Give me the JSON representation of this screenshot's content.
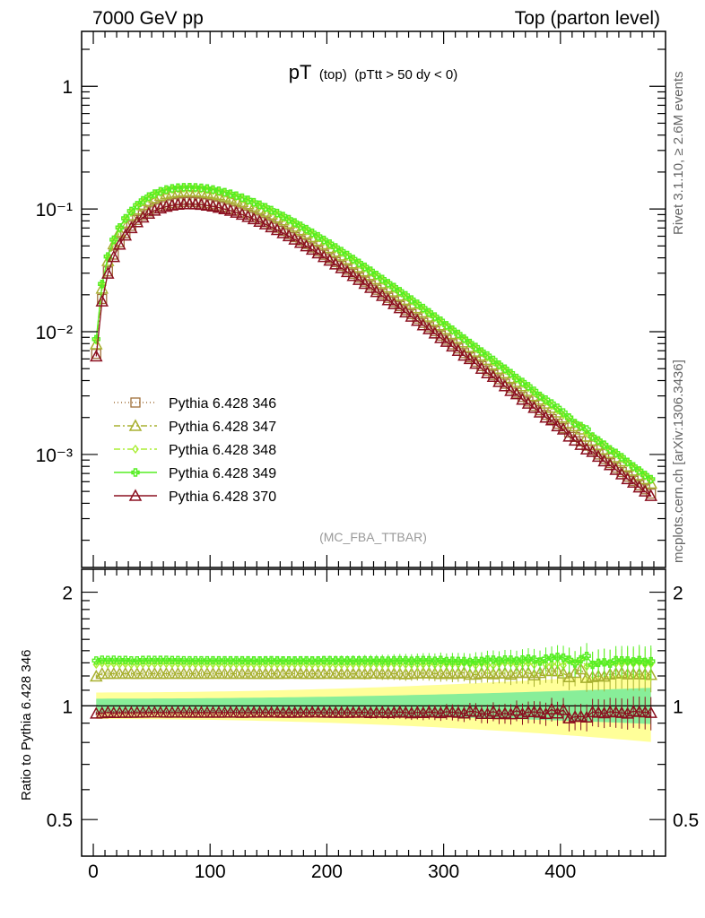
{
  "header": {
    "left": "7000 GeV pp",
    "right": "Top (parton level)"
  },
  "side_labels": {
    "rivet": "Rivet 3.1.10, ≥ 2.6M events",
    "mcplots": "mcplots.cern.ch [arXiv:1306.3436]"
  },
  "chart_data": {
    "type": "line",
    "title_main": "pT",
    "title_sub1": "(top)",
    "title_sub2": "(pTtt > 50 dy < 0)",
    "analysis_tag": "(MC_FBA_TTBAR)",
    "yscale": "log",
    "xlim": [
      -10,
      490
    ],
    "ylim": [
      0.00012,
      2.8
    ],
    "x_ticks": [
      "0",
      "100",
      "200",
      "300",
      "400"
    ],
    "y_ticks": [
      "1",
      "10⁻¹",
      "10⁻²",
      "10⁻³"
    ],
    "legend_position": "bottom-left",
    "ratio": {
      "ylabel": "Ratio to Pythia 6.428 346",
      "ylim": [
        0.4,
        2.3
      ],
      "y_ticks": [
        "2",
        "1",
        "0.5"
      ]
    },
    "x": [
      2.5,
      7.5,
      12.5,
      17.5,
      22.5,
      27.5,
      32.5,
      37.5,
      42.5,
      47.5,
      52.5,
      57.5,
      62.5,
      67.5,
      72.5,
      77.5,
      82.5,
      87.5,
      92.5,
      97.5,
      102.5,
      107.5,
      112.5,
      117.5,
      122.5,
      127.5,
      132.5,
      137.5,
      142.5,
      147.5,
      152.5,
      157.5,
      162.5,
      167.5,
      172.5,
      177.5,
      182.5,
      187.5,
      192.5,
      197.5,
      202.5,
      207.5,
      212.5,
      217.5,
      222.5,
      227.5,
      232.5,
      237.5,
      242.5,
      247.5,
      252.5,
      257.5,
      262.5,
      267.5,
      272.5,
      277.5,
      282.5,
      287.5,
      292.5,
      297.5,
      302.5,
      307.5,
      312.5,
      317.5,
      322.5,
      327.5,
      332.5,
      337.5,
      342.5,
      347.5,
      352.5,
      357.5,
      362.5,
      367.5,
      372.5,
      377.5,
      382.5,
      387.5,
      392.5,
      397.5,
      402.5,
      407.5,
      412.5,
      417.5,
      422.5,
      427.5,
      432.5,
      437.5,
      442.5,
      447.5,
      452.5,
      457.5,
      462.5,
      467.5,
      472.5,
      477.5
    ],
    "series": [
      {
        "name": "Pythia 6.428 346",
        "color": "#a0703a",
        "marker": "square",
        "dash": "1,3",
        "values": [
          0.0066,
          0.0185,
          0.031,
          0.0425,
          0.0535,
          0.0635,
          0.073,
          0.0815,
          0.089,
          0.0955,
          0.101,
          0.1055,
          0.109,
          0.1115,
          0.113,
          0.114,
          0.1142,
          0.1138,
          0.1128,
          0.1113,
          0.1093,
          0.1068,
          0.104,
          0.1008,
          0.0974,
          0.0938,
          0.09,
          0.0861,
          0.0822,
          0.0782,
          0.0742,
          0.0703,
          0.0664,
          0.0626,
          0.0589,
          0.0553,
          0.0519,
          0.0486,
          0.0454,
          0.0424,
          0.0396,
          0.0369,
          0.0344,
          0.032,
          0.0297,
          0.0276,
          0.0256,
          0.0238,
          0.022,
          0.0204,
          0.0189,
          0.0175,
          0.0162,
          0.015,
          0.0139,
          0.0128,
          0.0118,
          0.0109,
          0.0101,
          0.0093,
          0.0086,
          0.0079,
          0.0073,
          0.0067,
          0.0062,
          0.0057,
          0.00525,
          0.00483,
          0.00445,
          0.0041,
          0.00377,
          0.00347,
          0.00319,
          0.00294,
          0.0027,
          0.00249,
          0.00229,
          0.0021,
          0.00194,
          0.00178,
          0.00164,
          0.00151,
          0.00139,
          0.00128,
          0.00118,
          0.00109,
          0.001,
          0.00092,
          0.00085,
          0.00078,
          0.00072,
          0.00066,
          0.00061,
          0.00056,
          0.00052,
          0.00048
        ]
      },
      {
        "name": "Pythia 6.428 347",
        "color": "#a8b030",
        "marker": "triangle",
        "dash": "7,3,2,3",
        "values": [
          0.0079,
          0.0225,
          0.0377,
          0.0517,
          0.0651,
          0.0773,
          0.0888,
          0.0991,
          0.1083,
          0.1162,
          0.1229,
          0.1283,
          0.1326,
          0.1357,
          0.1375,
          0.1387,
          0.1389,
          0.1385,
          0.1372,
          0.1354,
          0.133,
          0.13,
          0.1265,
          0.1226,
          0.1185,
          0.1141,
          0.1095,
          0.1047,
          0.1,
          0.0951,
          0.0903,
          0.0855,
          0.0808,
          0.0762,
          0.0717,
          0.0673,
          0.0631,
          0.0591,
          0.0552,
          0.0516,
          0.0482,
          0.0449,
          0.0418,
          0.0389,
          0.0361,
          0.0336,
          0.0311,
          0.029,
          0.0268,
          0.0248,
          0.023,
          0.0213,
          0.0197,
          0.0182,
          0.0169,
          0.0156,
          0.0144,
          0.0133,
          0.0123,
          0.0113,
          0.0105,
          0.0096,
          0.0089,
          0.0082,
          0.0075,
          0.0069,
          0.0064,
          0.0059,
          0.0054,
          0.005,
          0.0046,
          0.0042,
          0.0039,
          0.0036,
          0.0033,
          0.003,
          0.0028,
          0.0026,
          0.0024,
          0.0022,
          0.002,
          0.0018,
          0.0017,
          0.0016,
          0.0014,
          0.0013,
          0.0012,
          0.0011,
          0.00103,
          0.00095,
          0.00088,
          0.0008,
          0.00074,
          0.00068,
          0.00063,
          0.00058
        ]
      },
      {
        "name": "Pythia 6.428 348",
        "color": "#aaee33",
        "marker": "diamond",
        "dash": "7,3,2,3",
        "values": [
          0.0085,
          0.024,
          0.04,
          0.055,
          0.069,
          0.082,
          0.094,
          0.105,
          0.115,
          0.1235,
          0.1305,
          0.1365,
          0.141,
          0.144,
          0.146,
          0.147,
          0.1473,
          0.1468,
          0.1455,
          0.1435,
          0.141,
          0.1378,
          0.1341,
          0.13,
          0.1256,
          0.1209,
          0.116,
          0.111,
          0.1059,
          0.1008,
          0.0957,
          0.0906,
          0.0856,
          0.0807,
          0.076,
          0.0714,
          0.0669,
          0.0626,
          0.0585,
          0.0547,
          0.051,
          0.0475,
          0.0443,
          0.0412,
          0.0383,
          0.0356,
          0.033,
          0.0307,
          0.0284,
          0.0263,
          0.0244,
          0.0226,
          0.0209,
          0.0193,
          0.0179,
          0.0165,
          0.0152,
          0.0141,
          0.013,
          0.012,
          0.0111,
          0.0102,
          0.0094,
          0.0087,
          0.008,
          0.0073,
          0.0068,
          0.0062,
          0.0057,
          0.0053,
          0.0049,
          0.0045,
          0.0041,
          0.0038,
          0.0035,
          0.0032,
          0.003,
          0.0027,
          0.0025,
          0.0023,
          0.0021,
          0.002,
          0.0018,
          0.0017,
          0.0015,
          0.0014,
          0.0013,
          0.0012,
          0.0011,
          0.00101,
          0.00093,
          0.00086,
          0.00079,
          0.00073,
          0.00067,
          0.00062
        ]
      },
      {
        "name": "Pythia 6.428 349",
        "color": "#55ee22",
        "marker": "cross",
        "dash": "",
        "values": [
          0.0087,
          0.0245,
          0.041,
          0.0563,
          0.0707,
          0.084,
          0.0963,
          0.1075,
          0.1177,
          0.1264,
          0.1336,
          0.1396,
          0.1443,
          0.1474,
          0.1494,
          0.1505,
          0.1507,
          0.1502,
          0.1489,
          0.1469,
          0.1443,
          0.141,
          0.1373,
          0.1331,
          0.1286,
          0.1238,
          0.1188,
          0.1136,
          0.1084,
          0.1032,
          0.098,
          0.0928,
          0.0876,
          0.0826,
          0.0777,
          0.073,
          0.0685,
          0.0641,
          0.0599,
          0.056,
          0.0523,
          0.0487,
          0.0454,
          0.0422,
          0.0392,
          0.0364,
          0.0338,
          0.0314,
          0.029,
          0.0269,
          0.0249,
          0.0231,
          0.0214,
          0.0198,
          0.0183,
          0.0169,
          0.0156,
          0.0144,
          0.0133,
          0.0123,
          0.0113,
          0.0104,
          0.0096,
          0.0088,
          0.0081,
          0.0075,
          0.0069,
          0.0064,
          0.0059,
          0.0054,
          0.005,
          0.0046,
          0.0042,
          0.0039,
          0.0036,
          0.0033,
          0.003,
          0.0028,
          0.0026,
          0.0024,
          0.0022,
          0.002,
          0.0018,
          0.0017,
          0.0016,
          0.0014,
          0.0013,
          0.0012,
          0.0011,
          0.00103,
          0.00095,
          0.00087,
          0.0008,
          0.00074,
          0.00068,
          0.00063
        ]
      },
      {
        "name": "Pythia 6.428 370",
        "color": "#8b1020",
        "marker": "triangle",
        "dash": "",
        "values": [
          0.0063,
          0.0177,
          0.0298,
          0.0407,
          0.0513,
          0.0609,
          0.07,
          0.0782,
          0.0854,
          0.0917,
          0.097,
          0.1013,
          0.1046,
          0.107,
          0.1085,
          0.1094,
          0.1096,
          0.1092,
          0.1083,
          0.1068,
          0.1049,
          0.1025,
          0.0998,
          0.0968,
          0.0935,
          0.09,
          0.0864,
          0.0827,
          0.0789,
          0.0751,
          0.0712,
          0.0675,
          0.0637,
          0.0601,
          0.0565,
          0.0531,
          0.0498,
          0.0467,
          0.0436,
          0.0407,
          0.038,
          0.0354,
          0.033,
          0.0307,
          0.0285,
          0.0265,
          0.0246,
          0.0228,
          0.0211,
          0.0196,
          0.0181,
          0.0168,
          0.0156,
          0.0144,
          0.0133,
          0.0123,
          0.0113,
          0.0105,
          0.0097,
          0.0089,
          0.0083,
          0.0076,
          0.007,
          0.0064,
          0.006,
          0.0055,
          0.005,
          0.0046,
          0.0043,
          0.0039,
          0.0036,
          0.0033,
          0.0031,
          0.0028,
          0.0026,
          0.0024,
          0.0022,
          0.002,
          0.0019,
          0.0017,
          0.0016,
          0.0014,
          0.0013,
          0.0012,
          0.0011,
          0.00105,
          0.00096,
          0.00088,
          0.00082,
          0.00075,
          0.00069,
          0.00063,
          0.00059,
          0.00054,
          0.0005,
          0.00046
        ]
      }
    ]
  }
}
